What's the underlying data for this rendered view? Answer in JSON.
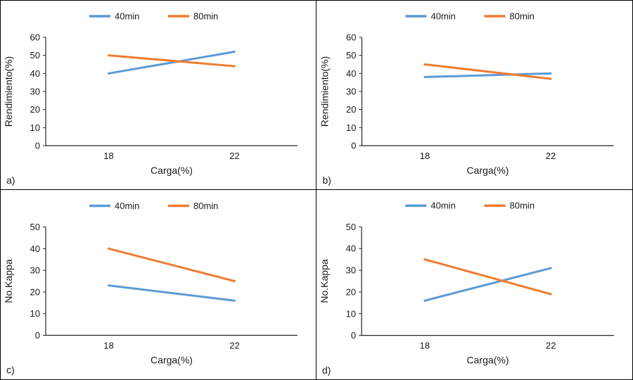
{
  "figure": {
    "background": "#ffffff",
    "border_color": "#000000",
    "axis_color": "#262626",
    "series_colors": {
      "40min": "#5B9BD5",
      "80min": "#ED7D31"
    }
  },
  "chart_data": [
    {
      "type": "line",
      "panel_label": "a)",
      "title": "",
      "categories": [
        "18",
        "22"
      ],
      "series": [
        {
          "name": "40min",
          "color": "#5B9BD5",
          "values": [
            40,
            52
          ]
        },
        {
          "name": "80min",
          "color": "#ED7D31",
          "values": [
            50,
            44
          ]
        }
      ],
      "xlabel": "Carga(%)",
      "ylabel": "Rendimiento(%)",
      "ylim": [
        0,
        60
      ],
      "ytick_step": 10,
      "grid": false,
      "legend_position": "top"
    },
    {
      "type": "line",
      "panel_label": "b)",
      "title": "",
      "categories": [
        "18",
        "22"
      ],
      "series": [
        {
          "name": "40min",
          "color": "#5B9BD5",
          "values": [
            38,
            40
          ]
        },
        {
          "name": "80min",
          "color": "#ED7D31",
          "values": [
            45,
            37
          ]
        }
      ],
      "xlabel": "Carga(%)",
      "ylabel": "Rendimiento(%)",
      "ylim": [
        0,
        60
      ],
      "ytick_step": 10,
      "grid": false,
      "legend_position": "top"
    },
    {
      "type": "line",
      "panel_label": "c)",
      "title": "",
      "categories": [
        "18",
        "22"
      ],
      "series": [
        {
          "name": "40min",
          "color": "#5B9BD5",
          "values": [
            23,
            16
          ]
        },
        {
          "name": "80min",
          "color": "#ED7D31",
          "values": [
            40,
            25
          ]
        }
      ],
      "xlabel": "Carga(%)",
      "ylabel": "No.Kappa",
      "ylim": [
        0,
        50
      ],
      "ytick_step": 10,
      "grid": false,
      "legend_position": "top"
    },
    {
      "type": "line",
      "panel_label": "d)",
      "title": "",
      "categories": [
        "18",
        "22"
      ],
      "series": [
        {
          "name": "40min",
          "color": "#5B9BD5",
          "values": [
            16,
            31
          ]
        },
        {
          "name": "80min",
          "color": "#ED7D31",
          "values": [
            35,
            19
          ]
        }
      ],
      "xlabel": "Carga(%)",
      "ylabel": "No.Kappa",
      "ylim": [
        0,
        50
      ],
      "ytick_step": 10,
      "grid": false,
      "legend_position": "top"
    }
  ]
}
